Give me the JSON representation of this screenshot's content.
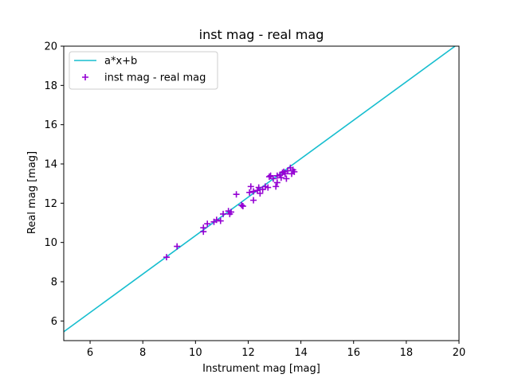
{
  "chart_data": {
    "type": "scatter",
    "title": "inst mag - real mag",
    "xlabel": "Instrument mag [mag]",
    "ylabel": "Real mag [mag]",
    "xlim": [
      5,
      20
    ],
    "ylim": [
      5,
      20
    ],
    "xticks": [
      6,
      8,
      10,
      12,
      14,
      16,
      18,
      20
    ],
    "yticks": [
      6,
      8,
      10,
      12,
      14,
      16,
      18,
      20
    ],
    "grid": false,
    "legend_position": "top-left",
    "series": [
      {
        "name": "a*x+b",
        "type": "line",
        "color": "#17becf",
        "x": [
          5,
          19.85
        ],
        "y": [
          5.45,
          20
        ]
      },
      {
        "name": "inst mag - real mag",
        "type": "scatter",
        "marker": "+",
        "color": "#9400d3",
        "points": [
          [
            8.9,
            9.25
          ],
          [
            9.3,
            9.8
          ],
          [
            10.3,
            10.55
          ],
          [
            10.3,
            10.75
          ],
          [
            10.45,
            10.95
          ],
          [
            10.7,
            11.05
          ],
          [
            10.8,
            11.15
          ],
          [
            10.95,
            11.1
          ],
          [
            11.05,
            11.45
          ],
          [
            11.25,
            11.6
          ],
          [
            11.3,
            11.45
          ],
          [
            11.35,
            11.55
          ],
          [
            11.55,
            12.45
          ],
          [
            11.75,
            11.9
          ],
          [
            11.8,
            11.85
          ],
          [
            12.05,
            12.55
          ],
          [
            12.1,
            12.85
          ],
          [
            12.2,
            12.15
          ],
          [
            12.2,
            12.6
          ],
          [
            12.35,
            12.65
          ],
          [
            12.4,
            12.8
          ],
          [
            12.45,
            12.5
          ],
          [
            12.55,
            12.7
          ],
          [
            12.65,
            12.85
          ],
          [
            12.75,
            12.8
          ],
          [
            12.8,
            13.35
          ],
          [
            12.85,
            13.4
          ],
          [
            12.95,
            13.25
          ],
          [
            13.05,
            12.85
          ],
          [
            13.1,
            13.05
          ],
          [
            13.1,
            13.4
          ],
          [
            13.2,
            13.45
          ],
          [
            13.25,
            13.3
          ],
          [
            13.3,
            13.55
          ],
          [
            13.35,
            13.6
          ],
          [
            13.4,
            13.5
          ],
          [
            13.45,
            13.25
          ],
          [
            13.5,
            13.65
          ],
          [
            13.6,
            13.8
          ],
          [
            13.65,
            13.5
          ],
          [
            13.7,
            13.7
          ],
          [
            13.75,
            13.6
          ]
        ]
      }
    ]
  }
}
